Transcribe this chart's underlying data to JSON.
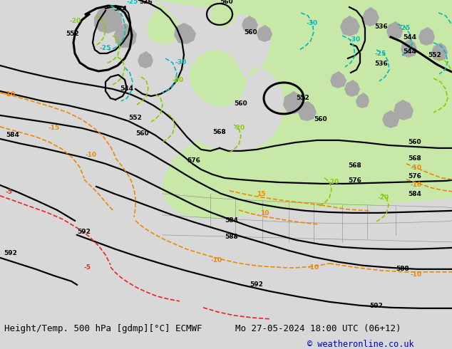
{
  "title_left": "Height/Temp. 500 hPa [gdmp][°C] ECMWF",
  "title_right": "Mo 27-05-2024 18:00 UTC (06+12)",
  "copyright": "© weatheronline.co.uk",
  "bg_color": "#d8d8d8",
  "map_bg_color": "#e2e2e2",
  "green_fill_color": "#c8e8a8",
  "bottom_bar_color": "#d0d0d0",
  "fig_width": 6.34,
  "fig_height": 4.9,
  "dpi": 100,
  "title_fontsize": 9.0,
  "copyright_fontsize": 8.5,
  "black_lw": 1.6,
  "black_lw_thick": 2.2,
  "color_lw": 1.2,
  "label_fs": 6.5,
  "cyan_color": "#00bbbb",
  "green_color": "#88cc00",
  "orange_color": "#ee8800",
  "red_color": "#ee2222",
  "gray_patch": "#a8a8a8",
  "border_color": "#888888",
  "border_lw": 0.4
}
